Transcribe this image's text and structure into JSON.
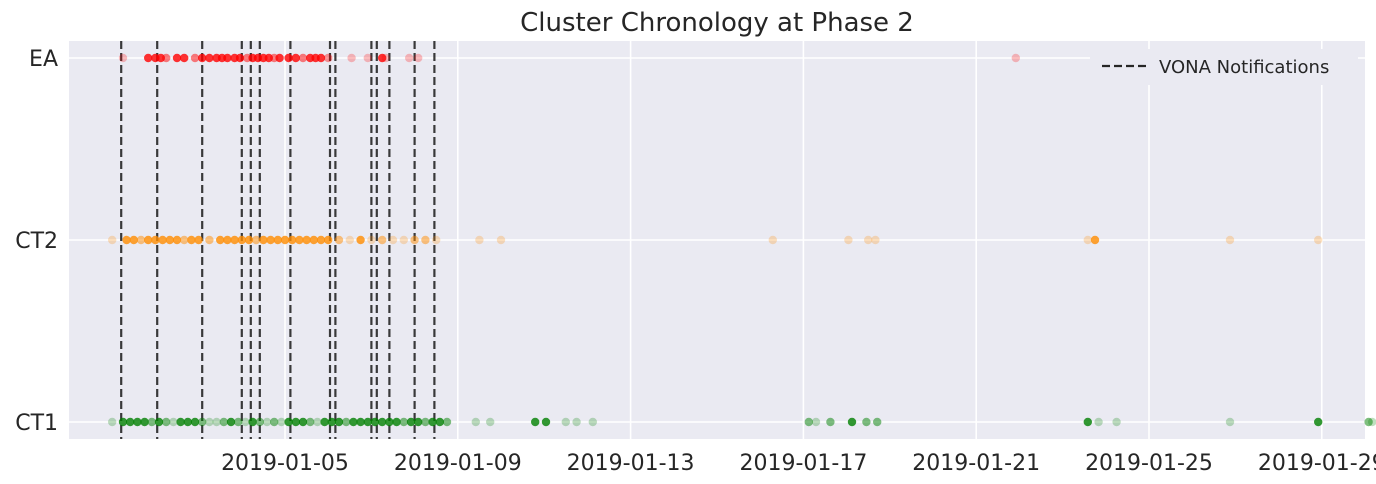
{
  "chart_data": {
    "type": "scatter",
    "title": "Cluster Chronology at Phase 2",
    "xlabel": "",
    "ylabel": "",
    "x_axis": "date",
    "xlim": [
      "2018-12-31T00:00",
      "2019-01-30T00:00"
    ],
    "x_ticks": [
      "2019-01-05",
      "2019-01-09",
      "2019-01-13",
      "2019-01-17",
      "2019-01-21",
      "2019-01-25",
      "2019-01-29"
    ],
    "categories": [
      "CT1",
      "CT2",
      "EA"
    ],
    "grid": true,
    "legend_position": "top-right",
    "series": [
      {
        "label": "EA",
        "color": "#ff0000",
        "x": [
          "2019-01-01T06:00",
          "2019-01-01T20:00",
          "2019-01-02T00:00",
          "2019-01-02T03:00",
          "2019-01-02T06:00",
          "2019-01-02T12:00",
          "2019-01-02T16:00",
          "2019-01-02T22:00",
          "2019-01-03T02:00",
          "2019-01-03T06:00",
          "2019-01-03T10:00",
          "2019-01-03T13:00",
          "2019-01-03T16:00",
          "2019-01-03T20:00",
          "2019-01-03T23:00",
          "2019-01-04T03:00",
          "2019-01-04T06:00",
          "2019-01-04T09:00",
          "2019-01-04T12:00",
          "2019-01-04T15:00",
          "2019-01-04T18:00",
          "2019-01-04T21:00",
          "2019-01-05T02:00",
          "2019-01-05T06:00",
          "2019-01-05T10:00",
          "2019-01-05T14:00",
          "2019-01-05T17:00",
          "2019-01-05T20:00",
          "2019-01-06T00:00",
          "2019-01-06T13:00",
          "2019-01-06T22:00",
          "2019-01-07T06:00",
          "2019-01-07T08:00",
          "2019-01-07T21:00",
          "2019-01-08T02:00",
          "2019-01-21T22:00"
        ],
        "alpha": [
          0.25,
          0.8,
          0.8,
          0.8,
          0.5,
          0.8,
          0.8,
          0.5,
          0.8,
          0.8,
          0.8,
          0.8,
          0.8,
          0.8,
          0.8,
          0.5,
          0.8,
          0.8,
          0.8,
          0.8,
          0.5,
          0.8,
          0.8,
          0.8,
          0.5,
          0.8,
          0.8,
          0.8,
          0.4,
          0.25,
          0.25,
          0.8,
          0.25,
          0.25,
          0.25,
          0.25
        ]
      },
      {
        "label": "CT2",
        "color": "#ff8c00",
        "x": [
          "2019-01-01T00:00",
          "2019-01-01T08:00",
          "2019-01-01T12:00",
          "2019-01-01T16:00",
          "2019-01-01T20:00",
          "2019-01-02T00:00",
          "2019-01-02T04:00",
          "2019-01-02T08:00",
          "2019-01-02T12:00",
          "2019-01-02T16:00",
          "2019-01-02T20:00",
          "2019-01-03T00:00",
          "2019-01-03T06:00",
          "2019-01-03T12:00",
          "2019-01-03T16:00",
          "2019-01-03T20:00",
          "2019-01-04T00:00",
          "2019-01-04T04:00",
          "2019-01-04T08:00",
          "2019-01-04T12:00",
          "2019-01-04T16:00",
          "2019-01-04T20:00",
          "2019-01-05T00:00",
          "2019-01-05T04:00",
          "2019-01-05T08:00",
          "2019-01-05T12:00",
          "2019-01-05T16:00",
          "2019-01-05T20:00",
          "2019-01-06T00:00",
          "2019-01-06T06:00",
          "2019-01-06T12:00",
          "2019-01-06T18:00",
          "2019-01-07T00:00",
          "2019-01-07T06:00",
          "2019-01-07T12:00",
          "2019-01-07T18:00",
          "2019-01-08T00:00",
          "2019-01-08T06:00",
          "2019-01-08T12:00",
          "2019-01-09T12:00",
          "2019-01-10T00:00",
          "2019-01-16T07:00",
          "2019-01-18T01:00",
          "2019-01-18T12:00",
          "2019-01-18T16:00",
          "2019-01-23T14:00",
          "2019-01-23T18:00",
          "2019-01-26T21:00",
          "2019-01-28T22:00"
        ],
        "alpha": [
          0.25,
          0.8,
          0.8,
          0.5,
          0.8,
          0.8,
          0.8,
          0.8,
          0.8,
          0.5,
          0.8,
          0.8,
          0.5,
          0.8,
          0.8,
          0.8,
          0.8,
          0.8,
          0.5,
          0.8,
          0.8,
          0.8,
          0.8,
          0.8,
          0.8,
          0.8,
          0.8,
          0.8,
          0.8,
          0.5,
          0.25,
          0.8,
          0.25,
          0.5,
          0.25,
          0.25,
          0.5,
          0.5,
          0.25,
          0.25,
          0.25,
          0.25,
          0.25,
          0.25,
          0.25,
          0.25,
          0.8,
          0.25,
          0.25
        ]
      },
      {
        "label": "CT1",
        "color": "#008000",
        "x": [
          "2019-01-01T00:00",
          "2019-01-01T06:00",
          "2019-01-01T10:00",
          "2019-01-01T14:00",
          "2019-01-01T18:00",
          "2019-01-01T22:00",
          "2019-01-02T02:00",
          "2019-01-02T06:00",
          "2019-01-02T10:00",
          "2019-01-02T14:00",
          "2019-01-02T18:00",
          "2019-01-02T22:00",
          "2019-01-03T02:00",
          "2019-01-03T06:00",
          "2019-01-03T10:00",
          "2019-01-03T14:00",
          "2019-01-03T18:00",
          "2019-01-03T22:00",
          "2019-01-04T02:00",
          "2019-01-04T06:00",
          "2019-01-04T10:00",
          "2019-01-04T14:00",
          "2019-01-04T18:00",
          "2019-01-04T22:00",
          "2019-01-05T02:00",
          "2019-01-05T06:00",
          "2019-01-05T10:00",
          "2019-01-05T14:00",
          "2019-01-05T18:00",
          "2019-01-05T22:00",
          "2019-01-06T02:00",
          "2019-01-06T06:00",
          "2019-01-06T10:00",
          "2019-01-06T14:00",
          "2019-01-06T18:00",
          "2019-01-06T22:00",
          "2019-01-07T02:00",
          "2019-01-07T06:00",
          "2019-01-07T10:00",
          "2019-01-07T14:00",
          "2019-01-07T18:00",
          "2019-01-07T22:00",
          "2019-01-08T02:00",
          "2019-01-08T06:00",
          "2019-01-08T10:00",
          "2019-01-08T14:00",
          "2019-01-08T18:00",
          "2019-01-09T10:00",
          "2019-01-09T18:00",
          "2019-01-10T19:00",
          "2019-01-11T01:00",
          "2019-01-11T12:00",
          "2019-01-11T18:00",
          "2019-01-12T03:00",
          "2019-01-17T03:00",
          "2019-01-17T07:00",
          "2019-01-17T15:00",
          "2019-01-18T03:00",
          "2019-01-18T11:00",
          "2019-01-18T17:00",
          "2019-01-23T14:00",
          "2019-01-23T20:00",
          "2019-01-24T06:00",
          "2019-01-26T21:00",
          "2019-01-28T22:00",
          "2019-01-30T02:00",
          "2019-01-30T04:00",
          "2019-01-30T20:00"
        ],
        "alpha": [
          0.25,
          0.8,
          0.8,
          0.8,
          0.8,
          0.5,
          0.8,
          0.5,
          0.25,
          0.8,
          0.8,
          0.8,
          0.5,
          0.25,
          0.25,
          0.5,
          0.8,
          0.5,
          0.25,
          0.8,
          0.5,
          0.25,
          0.5,
          0.25,
          0.8,
          0.8,
          0.8,
          0.5,
          0.25,
          0.8,
          0.8,
          0.8,
          0.5,
          0.8,
          0.8,
          0.8,
          0.8,
          0.8,
          0.8,
          0.8,
          0.5,
          0.8,
          0.8,
          0.5,
          0.8,
          0.8,
          0.5,
          0.25,
          0.25,
          0.8,
          0.8,
          0.25,
          0.25,
          0.25,
          0.5,
          0.25,
          0.5,
          0.8,
          0.5,
          0.5,
          0.8,
          0.25,
          0.25,
          0.25,
          0.8,
          0.5,
          0.25,
          0.25
        ]
      }
    ],
    "vlines": {
      "label": "VONA Notifications",
      "style": "dashed",
      "color": "#262626",
      "x": [
        "2019-01-01T05:00",
        "2019-01-02T01:00",
        "2019-01-03T02:00",
        "2019-01-04T00:00",
        "2019-01-04T05:00",
        "2019-01-04T10:00",
        "2019-01-05T03:00",
        "2019-01-06T01:00",
        "2019-01-06T04:00",
        "2019-01-07T00:00",
        "2019-01-07T03:00",
        "2019-01-07T10:00",
        "2019-01-08T00:00",
        "2019-01-08T11:00"
      ]
    }
  }
}
